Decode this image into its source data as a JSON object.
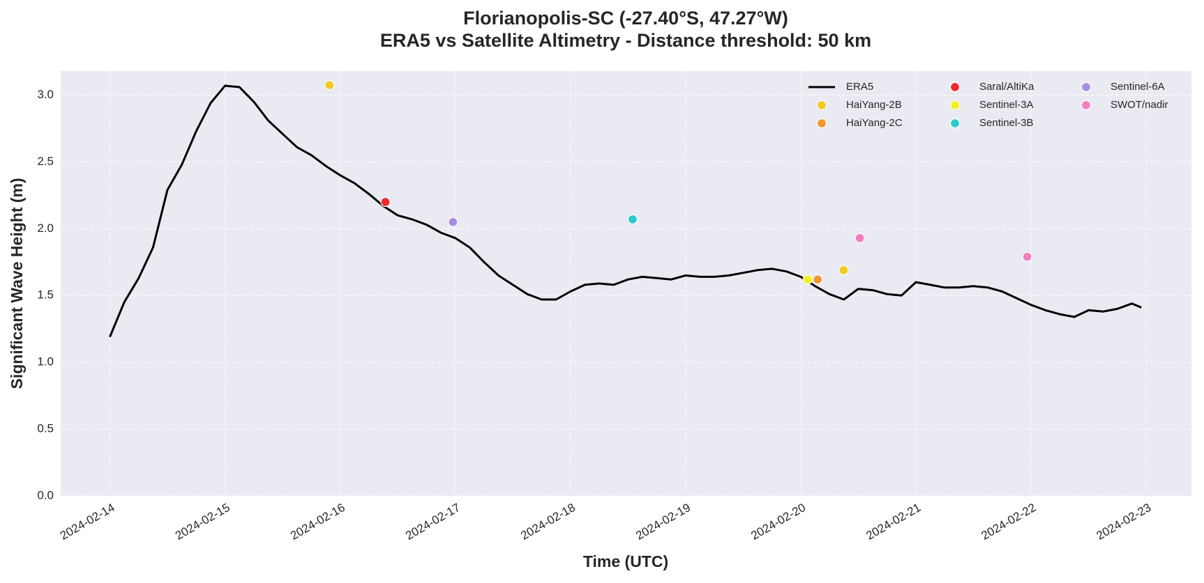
{
  "chart_data": {
    "type": "line",
    "title": "Florianopolis-SC (-27.40°S, 47.27°W)",
    "subtitle": "ERA5 vs Satellite Altimetry - Distance threshold: 50 km",
    "x_label": "Time (UTC)",
    "y_label": "Significant Wave Height (m)",
    "xlim": [
      "2024-02-13T13:45",
      "2024-02-23T09:26"
    ],
    "xticks": [
      "2024-02-14",
      "2024-02-15",
      "2024-02-16",
      "2024-02-17",
      "2024-02-18",
      "2024-02-19",
      "2024-02-20",
      "2024-02-21",
      "2024-02-22",
      "2024-02-23"
    ],
    "ylim": [
      0,
      3.18
    ],
    "yticks": [
      {
        "value": 0,
        "label": "0.0"
      },
      0.5,
      {
        "value": 1,
        "label": "1.0"
      },
      1.5,
      {
        "value": 2,
        "label": "2.0"
      },
      2.5,
      {
        "value": 3,
        "label": "3.0"
      }
    ],
    "grid": true,
    "legend": "upper right",
    "series": [
      {
        "name": "ERA5",
        "type": "line",
        "color": "#000000",
        "x": [
          "2024-02-14T00:00",
          "2024-02-14T03:00",
          "2024-02-14T06:00",
          "2024-02-14T09:00",
          "2024-02-14T12:00",
          "2024-02-14T15:00",
          "2024-02-14T18:00",
          "2024-02-14T21:00",
          "2024-02-15T00:00",
          "2024-02-15T03:00",
          "2024-02-15T06:00",
          "2024-02-15T09:00",
          "2024-02-15T12:00",
          "2024-02-15T15:00",
          "2024-02-15T18:00",
          "2024-02-15T21:00",
          "2024-02-16T00:00",
          "2024-02-16T03:00",
          "2024-02-16T06:00",
          "2024-02-16T09:00",
          "2024-02-16T12:00",
          "2024-02-16T15:00",
          "2024-02-16T18:00",
          "2024-02-16T21:00",
          "2024-02-17T00:00",
          "2024-02-17T03:00",
          "2024-02-17T06:00",
          "2024-02-17T09:00",
          "2024-02-17T12:00",
          "2024-02-17T15:00",
          "2024-02-17T18:00",
          "2024-02-17T21:00",
          "2024-02-18T00:00",
          "2024-02-18T03:00",
          "2024-02-18T06:00",
          "2024-02-18T09:00",
          "2024-02-18T12:00",
          "2024-02-18T15:00",
          "2024-02-18T18:00",
          "2024-02-18T21:00",
          "2024-02-19T00:00",
          "2024-02-19T03:00",
          "2024-02-19T06:00",
          "2024-02-19T09:00",
          "2024-02-19T12:00",
          "2024-02-19T15:00",
          "2024-02-19T18:00",
          "2024-02-19T21:00",
          "2024-02-20T00:00",
          "2024-02-20T03:00",
          "2024-02-20T06:00",
          "2024-02-20T09:00",
          "2024-02-20T12:00",
          "2024-02-20T15:00",
          "2024-02-20T18:00",
          "2024-02-20T21:00",
          "2024-02-21T00:00",
          "2024-02-21T03:00",
          "2024-02-21T06:00",
          "2024-02-21T09:00",
          "2024-02-21T12:00",
          "2024-02-21T15:00",
          "2024-02-21T18:00",
          "2024-02-21T21:00",
          "2024-02-22T00:00",
          "2024-02-22T03:00",
          "2024-02-22T06:00",
          "2024-02-22T09:00",
          "2024-02-22T12:00",
          "2024-02-22T15:00",
          "2024-02-22T18:00",
          "2024-02-22T21:00",
          "2024-02-22T23:00"
        ],
        "values": [
          1.19,
          1.45,
          1.63,
          1.86,
          2.29,
          2.48,
          2.73,
          2.94,
          3.07,
          3.06,
          2.95,
          2.81,
          2.71,
          2.61,
          2.55,
          2.47,
          2.4,
          2.34,
          2.26,
          2.17,
          2.1,
          2.07,
          2.03,
          1.97,
          1.93,
          1.86,
          1.75,
          1.65,
          1.58,
          1.51,
          1.47,
          1.47,
          1.53,
          1.58,
          1.59,
          1.58,
          1.62,
          1.64,
          1.63,
          1.62,
          1.65,
          1.64,
          1.64,
          1.65,
          1.67,
          1.69,
          1.7,
          1.68,
          1.64,
          1.57,
          1.51,
          1.47,
          1.55,
          1.54,
          1.51,
          1.5,
          1.6,
          1.58,
          1.56,
          1.56,
          1.57,
          1.56,
          1.53,
          1.48,
          1.43,
          1.39,
          1.36,
          1.34,
          1.39,
          1.38,
          1.4,
          1.44,
          1.41
        ]
      },
      {
        "name": "HaiYang-2B",
        "type": "scatter",
        "color": "#f2cb23",
        "x": [
          "2024-02-15T21:46",
          "2024-02-20T08:57"
        ],
        "values": [
          3.075,
          1.69
        ]
      },
      {
        "name": "HaiYang-2C",
        "type": "scatter",
        "color": "#f39530",
        "x": [
          "2024-02-20T03:31"
        ],
        "values": [
          1.62
        ]
      },
      {
        "name": "Saral/AltiKa",
        "type": "scatter",
        "color": "#ee2a2a",
        "x": [
          "2024-02-16T09:26"
        ],
        "values": [
          2.2
        ]
      },
      {
        "name": "Sentinel-3A",
        "type": "scatter",
        "color": "#f2f01e",
        "x": [
          "2024-02-20T01:27"
        ],
        "values": [
          1.62
        ]
      },
      {
        "name": "Sentinel-3B",
        "type": "scatter",
        "color": "#2ec9cb",
        "x": [
          "2024-02-18T12:58"
        ],
        "values": [
          2.07
        ]
      },
      {
        "name": "Sentinel-6A",
        "type": "scatter",
        "color": "#a98de0",
        "x": [
          "2024-02-16T23:31"
        ],
        "values": [
          2.05
        ]
      },
      {
        "name": "SWOT/nadir",
        "type": "scatter",
        "color": "#f37ec0",
        "x": [
          "2024-02-20T12:19",
          "2024-02-21T23:12"
        ],
        "values": [
          1.93,
          1.79
        ]
      }
    ]
  }
}
